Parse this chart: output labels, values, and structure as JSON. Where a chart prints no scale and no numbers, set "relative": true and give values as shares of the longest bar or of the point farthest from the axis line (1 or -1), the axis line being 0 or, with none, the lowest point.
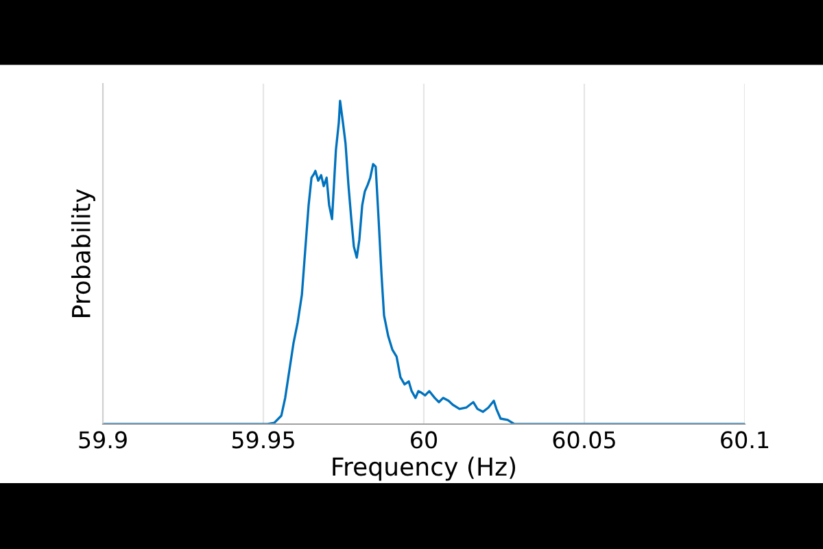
{
  "chart_data": {
    "type": "line",
    "xlabel": "Frequency (Hz)",
    "ylabel": "Probability",
    "relative": true,
    "grid": "x",
    "tick_labels": "x",
    "xlim": [
      59.9,
      60.1
    ],
    "xticks": [
      59.9,
      59.95,
      60,
      60.05,
      60.1
    ],
    "series": [
      {
        "color": "#0072bd",
        "x": [
          59.9,
          59.9513,
          59.9534,
          59.9556,
          59.9568,
          59.9581,
          59.9594,
          59.9607,
          59.962,
          59.9628,
          59.9641,
          59.965,
          59.9658,
          59.9662,
          59.9671,
          59.968,
          59.9688,
          59.9697,
          59.9705,
          59.9714,
          59.9726,
          59.9735,
          59.9739,
          59.9748,
          59.9756,
          59.9765,
          59.9774,
          59.9782,
          59.9791,
          59.9799,
          59.9808,
          59.9816,
          59.9825,
          59.9833,
          59.9842,
          59.985,
          59.9859,
          59.9868,
          59.9876,
          59.9889,
          59.9902,
          59.9915,
          59.9927,
          59.994,
          59.9953,
          59.9962,
          59.9974,
          59.9983,
          59.9991,
          60.0004,
          60.0017,
          60.0034,
          60.0047,
          60.006,
          60.0077,
          60.009,
          60.0111,
          60.0132,
          60.0154,
          60.0167,
          60.0184,
          60.0201,
          60.0218,
          60.0226,
          60.0239,
          60.0261,
          60.0282,
          60.1
        ],
        "values": [
          0,
          0,
          0.004,
          0.026,
          0.081,
          0.166,
          0.251,
          0.315,
          0.4,
          0.506,
          0.677,
          0.762,
          0.774,
          0.783,
          0.753,
          0.77,
          0.736,
          0.762,
          0.677,
          0.634,
          0.847,
          0.932,
          1,
          0.932,
          0.868,
          0.74,
          0.634,
          0.549,
          0.515,
          0.57,
          0.677,
          0.719,
          0.74,
          0.762,
          0.804,
          0.796,
          0.634,
          0.464,
          0.336,
          0.272,
          0.23,
          0.209,
          0.145,
          0.123,
          0.132,
          0.102,
          0.081,
          0.102,
          0.098,
          0.089,
          0.102,
          0.081,
          0.068,
          0.081,
          0.072,
          0.06,
          0.047,
          0.051,
          0.068,
          0.047,
          0.038,
          0.051,
          0.072,
          0.047,
          0.017,
          0.013,
          0,
          0
        ]
      }
    ]
  }
}
